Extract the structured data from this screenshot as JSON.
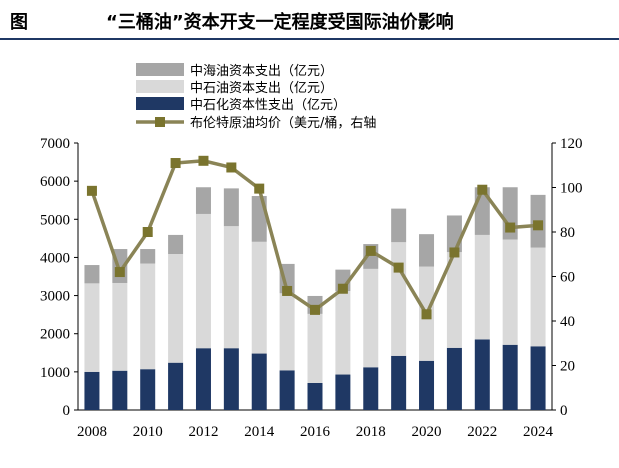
{
  "figure_label": "图",
  "title": "“三桶油”资本开支一定程度受国际油价影响",
  "colors": {
    "cnooc": "#a6a6a6",
    "petrochina": "#d9d9d9",
    "sinopec": "#1f3864",
    "brent": "#8a8456",
    "brent_marker": "#7a742e",
    "rule": "#1f3864"
  },
  "chart_data": {
    "type": "bar",
    "stacked": true,
    "categories": [
      "2008",
      "2009",
      "2010",
      "2011",
      "2012",
      "2013",
      "2014",
      "2015",
      "2016",
      "2017",
      "2018",
      "2019",
      "2020",
      "2021",
      "2022",
      "2023",
      "2024"
    ],
    "x_tick_labels": [
      "2008",
      "2010",
      "2012",
      "2014",
      "2016",
      "2018",
      "2020",
      "2022",
      "2024"
    ],
    "series": [
      {
        "name": "中石化资本性支出（亿元）",
        "axis": "left",
        "values": [
          1000,
          1030,
          1070,
          1240,
          1620,
          1620,
          1480,
          1040,
          710,
          930,
          1120,
          1420,
          1290,
          1630,
          1850,
          1710,
          1670
        ]
      },
      {
        "name": "中石油资本支出（亿元）",
        "axis": "left",
        "values": [
          2320,
          2300,
          2770,
          2850,
          3520,
          3200,
          2930,
          2020,
          1810,
          2190,
          2580,
          2980,
          2470,
          2510,
          2740,
          2760,
          2590
        ]
      },
      {
        "name": "中海油资本支出（亿元）",
        "axis": "left",
        "values": [
          480,
          890,
          380,
          500,
          700,
          990,
          1200,
          770,
          470,
          560,
          650,
          880,
          850,
          960,
          1250,
          1370,
          1380
        ]
      }
    ],
    "line_series": {
      "name": "布伦特原油均价（美元/桶，右轴",
      "axis": "right",
      "values": [
        98.5,
        62,
        80,
        111,
        112,
        109,
        99.5,
        53.5,
        45,
        54.5,
        71.5,
        64,
        43,
        70.8,
        99,
        82,
        83
      ]
    },
    "y_left": {
      "min": 0,
      "max": 7000,
      "ticks": [
        0,
        1000,
        2000,
        3000,
        4000,
        5000,
        6000,
        7000
      ]
    },
    "y_right": {
      "min": 0,
      "max": 120,
      "ticks": [
        0,
        20,
        40,
        60,
        80,
        100,
        120
      ]
    },
    "legend_placement": "top-left"
  }
}
